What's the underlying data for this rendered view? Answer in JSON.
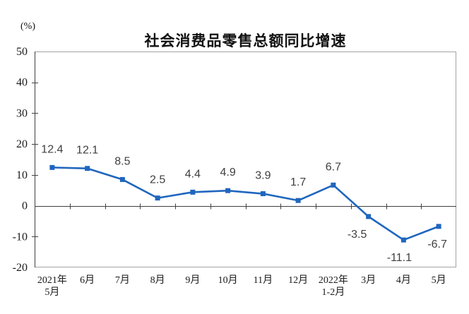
{
  "chart_data": {
    "type": "line",
    "title": "社会消费品零售总额同比增速",
    "unit_label": "(%)",
    "categories": [
      "2021年\n5月",
      "6月",
      "7月",
      "8月",
      "9月",
      "10月",
      "11月",
      "12月",
      "2022年\n1-2月",
      "3月",
      "4月",
      "5月"
    ],
    "values": [
      12.4,
      12.1,
      8.5,
      2.5,
      4.4,
      4.9,
      3.9,
      1.7,
      6.7,
      -3.5,
      -11.1,
      -6.7
    ],
    "ylim": [
      -20,
      50
    ],
    "yticks": [
      50,
      40,
      30,
      20,
      10,
      0,
      -10,
      -20
    ],
    "grid": false,
    "legend": "none",
    "marker": "square",
    "colors": {
      "line": "#1F66BE",
      "marker": "#1F66BE",
      "data_label": "#3f3f3f",
      "axis": "#3f3f3f",
      "plot_border": "#a3a3a3",
      "text": "#1a1a1a"
    },
    "layout": {
      "label_dx": [
        0,
        0,
        0,
        0,
        0,
        0,
        0,
        0,
        0,
        -16,
        -6,
        -2
      ],
      "label_dy_positive": -21,
      "label_dy_negative": 30
    }
  }
}
